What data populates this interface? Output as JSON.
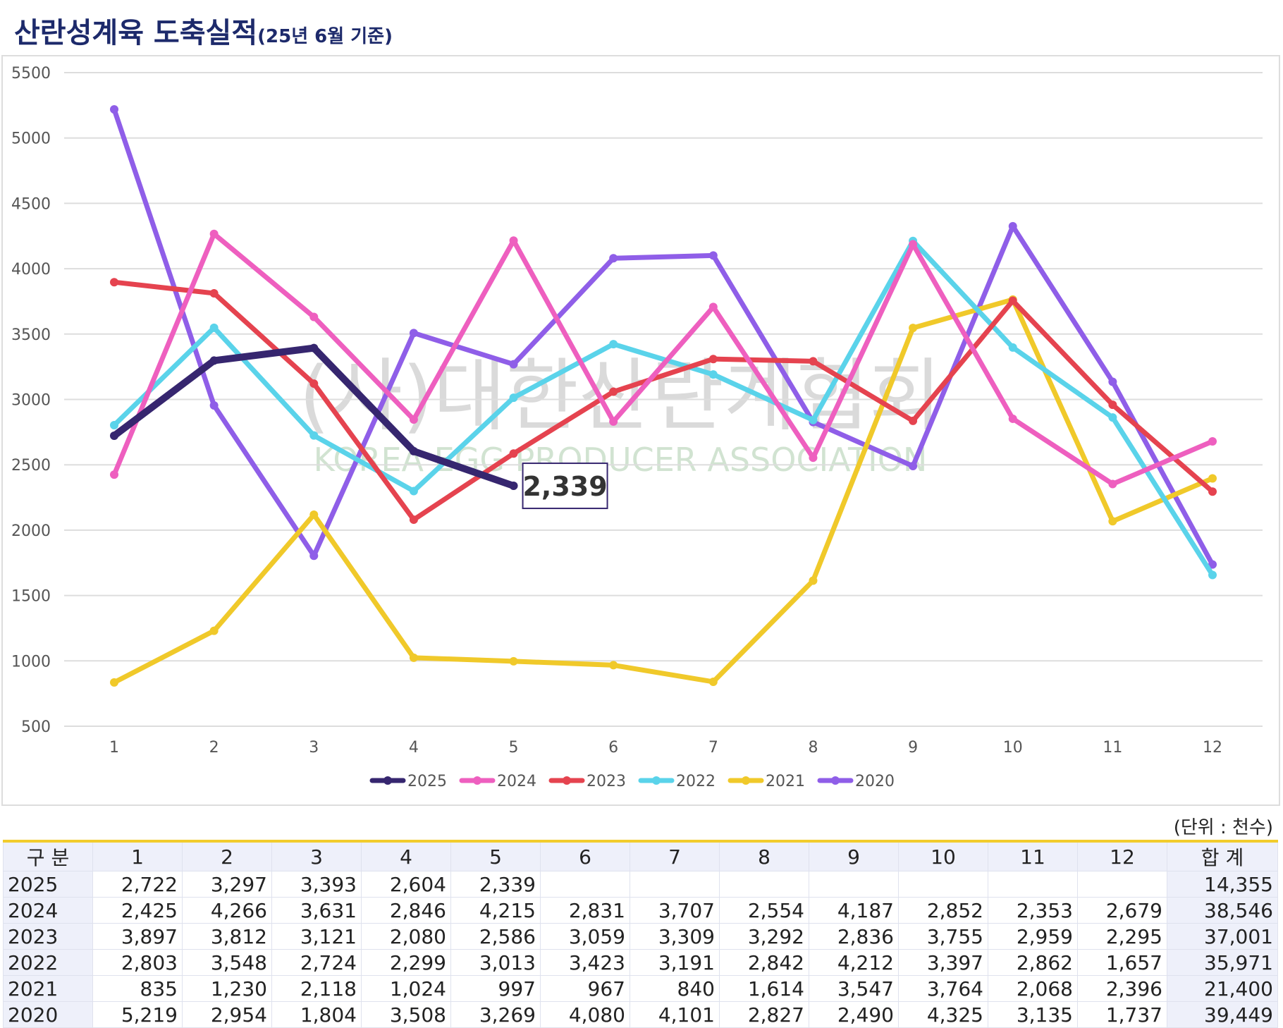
{
  "header": {
    "title": "산란성계육 도축실적",
    "subtitle": "(25년 6월 기준)"
  },
  "chart_data": {
    "type": "line",
    "watermark": {
      "text": "(사)대한산란계협회",
      "subtext": "KOREA EGG PRODUCER ASSOCIATION"
    },
    "categories": [
      "1",
      "2",
      "3",
      "4",
      "5",
      "6",
      "7",
      "8",
      "9",
      "10",
      "11",
      "12"
    ],
    "ylim": [
      500,
      5500
    ],
    "yticks": [
      500,
      1000,
      1500,
      2000,
      2500,
      3000,
      3500,
      4000,
      4500,
      5000,
      5500
    ],
    "grid": true,
    "legend": "bottom",
    "series": [
      {
        "name": "2025",
        "color": "#36266f",
        "values": [
          2722,
          3297,
          3393,
          2604,
          2339,
          null,
          null,
          null,
          null,
          null,
          null,
          null
        ],
        "value_labels": [
          null,
          null,
          null,
          null,
          "2,339",
          null,
          null,
          null,
          null,
          null,
          null,
          null
        ]
      },
      {
        "name": "2024",
        "color": "#ee5fbf",
        "values": [
          2425,
          4266,
          3631,
          2846,
          4215,
          2831,
          3707,
          2554,
          4187,
          2852,
          2353,
          2679
        ]
      },
      {
        "name": "2023",
        "color": "#e5434f",
        "values": [
          3897,
          3812,
          3121,
          2080,
          2586,
          3059,
          3309,
          3292,
          2836,
          3755,
          2959,
          2295
        ]
      },
      {
        "name": "2022",
        "color": "#5ad3ea",
        "values": [
          2803,
          3548,
          2724,
          2299,
          3013,
          3423,
          3191,
          2842,
          4212,
          3397,
          2862,
          1657
        ]
      },
      {
        "name": "2021",
        "color": "#f0c92a",
        "values": [
          835,
          1230,
          2118,
          1024,
          997,
          967,
          840,
          1614,
          3547,
          3764,
          2068,
          2396
        ]
      },
      {
        "name": "2020",
        "color": "#8f5ee8",
        "values": [
          5219,
          2954,
          1804,
          3508,
          3269,
          4080,
          4101,
          2827,
          2490,
          4325,
          3135,
          1737
        ]
      }
    ]
  },
  "table": {
    "unit": "(단위 : 천수)",
    "columns": [
      "구 분",
      "1",
      "2",
      "3",
      "4",
      "5",
      "6",
      "7",
      "8",
      "9",
      "10",
      "11",
      "12",
      "합 계"
    ],
    "rows": [
      [
        "2025",
        "2,722",
        "3,297",
        "3,393",
        "2,604",
        "2,339",
        null,
        null,
        null,
        null,
        null,
        null,
        null,
        "14,355"
      ],
      [
        "2024",
        "2,425",
        "4,266",
        "3,631",
        "2,846",
        "4,215",
        "2,831",
        "3,707",
        "2,554",
        "4,187",
        "2,852",
        "2,353",
        "2,679",
        "38,546"
      ],
      [
        "2023",
        "3,897",
        "3,812",
        "3,121",
        "2,080",
        "2,586",
        "3,059",
        "3,309",
        "3,292",
        "2,836",
        "3,755",
        "2,959",
        "2,295",
        "37,001"
      ],
      [
        "2022",
        "2,803",
        "3,548",
        "2,724",
        "2,299",
        "3,013",
        "3,423",
        "3,191",
        "2,842",
        "4,212",
        "3,397",
        "2,862",
        "1,657",
        "35,971"
      ],
      [
        "2021",
        "835",
        "1,230",
        "2,118",
        "1,024",
        "997",
        "967",
        "840",
        "1,614",
        "3,547",
        "3,764",
        "2,068",
        "2,396",
        "21,400"
      ],
      [
        "2020",
        "5,219",
        "2,954",
        "1,804",
        "3,508",
        "3,269",
        "4,080",
        "4,101",
        "2,827",
        "2,490",
        "4,325",
        "3,135",
        "1,737",
        "39,449"
      ]
    ]
  }
}
